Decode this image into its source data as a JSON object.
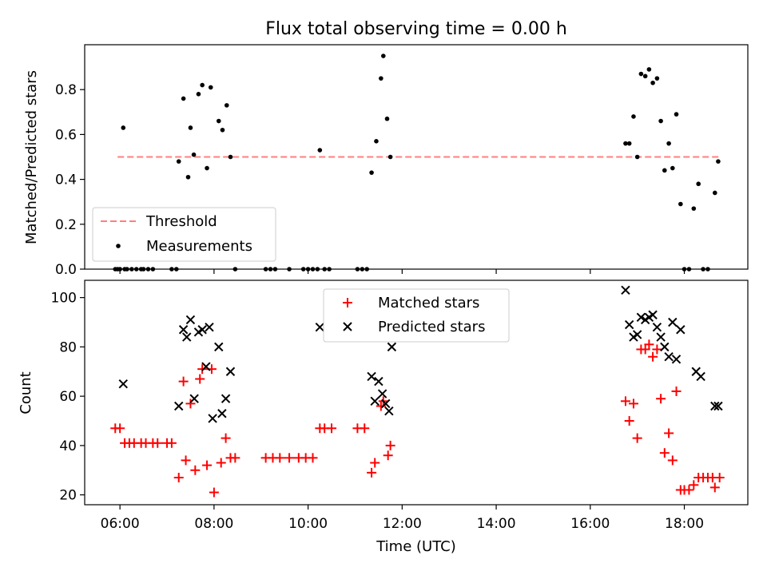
{
  "chart_data": [
    {
      "type": "scatter",
      "title": "Flux total observing time = 0.00 h",
      "ylabel": "Matched/Predicted stars",
      "xlim": [
        5.25,
        19.35
      ],
      "ylim": [
        0,
        1.0
      ],
      "yticks": [
        "0.0",
        "0.2",
        "0.4",
        "0.6",
        "0.8"
      ],
      "yticks_values": [
        0,
        0.2,
        0.4,
        0.6,
        0.8
      ],
      "legend_position": "lower-left",
      "legend": [
        "Threshold",
        "Measurements"
      ],
      "threshold": {
        "name": "Threshold",
        "value": 0.5,
        "x_range": [
          5.95,
          18.75
        ],
        "color": "#ff7f7f",
        "style": "dashed"
      },
      "measurements": {
        "name": "Measurements",
        "color": "#000000",
        "x": [
          5.95,
          6.07,
          7.25,
          7.35,
          7.45,
          7.5,
          7.57,
          7.67,
          7.75,
          7.85,
          7.93,
          8.1,
          8.18,
          8.27,
          8.35,
          10.25,
          11.35,
          11.45,
          11.55,
          11.6,
          11.68,
          11.75,
          16.75,
          16.83,
          16.92,
          17.0,
          17.08,
          17.17,
          17.25,
          17.33,
          17.42,
          17.5,
          17.58,
          17.67,
          17.75,
          17.83,
          17.92,
          18.2,
          18.3,
          18.65,
          18.72
        ],
        "y": [
          0.0,
          0.63,
          0.48,
          0.76,
          0.41,
          0.63,
          0.51,
          0.78,
          0.82,
          0.45,
          0.81,
          0.66,
          0.62,
          0.73,
          0.5,
          0.53,
          0.43,
          0.57,
          0.85,
          0.95,
          0.67,
          0.5,
          0.56,
          0.56,
          0.68,
          0.5,
          0.87,
          0.86,
          0.89,
          0.83,
          0.85,
          0.66,
          0.44,
          0.56,
          0.45,
          0.69,
          0.29,
          0.27,
          0.38,
          0.34,
          0.48
        ],
        "zeros_x": [
          5.9,
          6.0,
          6.1,
          6.15,
          6.25,
          6.35,
          6.45,
          6.5,
          6.6,
          6.7,
          7.1,
          7.2,
          8.45,
          9.1,
          9.2,
          9.3,
          9.6,
          9.9,
          10.0,
          10.1,
          10.2,
          10.35,
          10.45,
          11.05,
          11.15,
          11.25,
          18.0,
          18.1,
          18.4,
          18.5
        ]
      }
    },
    {
      "type": "scatter",
      "ylabel": "Count",
      "xlabel": "Time (UTC)",
      "xlim": [
        5.25,
        19.35
      ],
      "ylim": [
        16,
        107
      ],
      "xticks": [
        "06:00",
        "08:00",
        "10:00",
        "12:00",
        "14:00",
        "16:00",
        "18:00"
      ],
      "xticks_values": [
        6,
        8,
        10,
        12,
        14,
        16,
        18
      ],
      "yticks": [
        "20",
        "40",
        "60",
        "80",
        "100"
      ],
      "yticks_values": [
        20,
        40,
        60,
        80,
        100
      ],
      "legend_position": "upper-center",
      "legend": [
        "Matched stars",
        "Predicted stars"
      ],
      "series": [
        {
          "name": "Matched stars",
          "marker": "plus",
          "color": "#ff0000",
          "x": [
            5.9,
            6.0,
            6.1,
            6.2,
            6.3,
            6.45,
            6.55,
            6.7,
            6.8,
            7.0,
            7.1,
            7.25,
            7.35,
            7.4,
            7.5,
            7.6,
            7.7,
            7.75,
            7.85,
            7.95,
            8.0,
            8.15,
            8.25,
            8.35,
            8.45,
            9.1,
            9.25,
            9.4,
            9.6,
            9.8,
            9.95,
            10.1,
            10.25,
            10.35,
            10.5,
            11.05,
            11.2,
            11.35,
            11.42,
            11.55,
            11.6,
            11.7,
            11.75,
            16.75,
            16.83,
            16.92,
            17.0,
            17.08,
            17.17,
            17.25,
            17.33,
            17.42,
            17.5,
            17.58,
            17.67,
            17.75,
            17.83,
            17.92,
            18.0,
            18.1,
            18.2,
            18.3,
            18.4,
            18.5,
            18.6,
            18.65,
            18.75
          ],
          "y": [
            47,
            47,
            41,
            41,
            41,
            41,
            41,
            41,
            41,
            41,
            41,
            27,
            66,
            34,
            57,
            30,
            67,
            71,
            32,
            71,
            21,
            33,
            43,
            35,
            35,
            35,
            35,
            35,
            35,
            35,
            35,
            35,
            47,
            47,
            47,
            47,
            47,
            29,
            33,
            56,
            58,
            36,
            40,
            58,
            50,
            57,
            43,
            79,
            79,
            81,
            76,
            79,
            59,
            37,
            45,
            34,
            62,
            22,
            22,
            22,
            24,
            27,
            27,
            27,
            27,
            23,
            27
          ]
        },
        {
          "name": "Predicted stars",
          "marker": "x",
          "color": "#000000",
          "x": [
            6.07,
            7.25,
            7.35,
            7.42,
            7.5,
            7.58,
            7.67,
            7.75,
            7.83,
            7.9,
            7.97,
            8.1,
            8.17,
            8.25,
            8.35,
            10.25,
            11.35,
            11.42,
            11.5,
            11.58,
            11.65,
            11.72,
            11.78,
            16.75,
            16.83,
            16.92,
            17.0,
            17.08,
            17.17,
            17.25,
            17.33,
            17.42,
            17.5,
            17.58,
            17.67,
            17.75,
            17.83,
            17.92,
            18.25,
            18.35,
            18.65,
            18.72
          ],
          "y": [
            65,
            56,
            87,
            84,
            91,
            59,
            86,
            87,
            72,
            88,
            51,
            80,
            53,
            59,
            70,
            88,
            68,
            58,
            66,
            61,
            57,
            54,
            80,
            103,
            89,
            84,
            85,
            92,
            91,
            92,
            93,
            88,
            84,
            80,
            76,
            90,
            75,
            87,
            70,
            68,
            56,
            56
          ]
        }
      ]
    }
  ]
}
